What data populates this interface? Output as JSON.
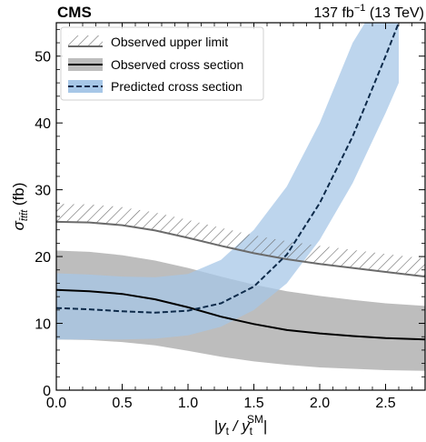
{
  "chart_data": {
    "type": "line",
    "experiment": "CMS",
    "lumi_label": "137 fb",
    "lumi_sup": "−1",
    "lumi_energy": " (13 TeV)",
    "xlabel": {
      "pre": "|y",
      "sub1": "t",
      "mid": " / y",
      "sub2": "t",
      "sup2": "SM",
      "post": "|"
    },
    "ylabel": {
      "main": "σ",
      "sub": "t̄tt̄t",
      "unit": " (fb)"
    },
    "xlim": [
      0,
      2.8
    ],
    "ylim": [
      0,
      55
    ],
    "x_ticks": [
      0.0,
      0.5,
      1.0,
      1.5,
      2.0,
      2.5
    ],
    "x_tick_labels": [
      "0.0",
      "0.5",
      "1.0",
      "1.5",
      "2.0",
      "2.5"
    ],
    "y_ticks": [
      0,
      10,
      20,
      30,
      40,
      50
    ],
    "y_tick_labels": [
      "0",
      "10",
      "20",
      "30",
      "40",
      "50"
    ],
    "legend_position": "top-left",
    "colors": {
      "observed_limit_line": "#6b6b6b",
      "observed_band": "#bdbdbd",
      "observed_line": "#000000",
      "predicted_band": "#a7c7e7",
      "predicted_line": "#0d2a4a"
    },
    "series": [
      {
        "name": "Observed upper limit",
        "style": "hatched",
        "x": [
          0.0,
          0.25,
          0.5,
          0.75,
          1.0,
          1.25,
          1.5,
          1.75,
          2.0,
          2.25,
          2.5,
          2.8
        ],
        "y": [
          25.2,
          25.1,
          24.7,
          23.9,
          22.8,
          21.6,
          20.5,
          19.6,
          18.9,
          18.3,
          17.7,
          17.0
        ]
      },
      {
        "name": "Observed cross section",
        "style": "band",
        "x": [
          0.0,
          0.25,
          0.5,
          0.75,
          1.0,
          1.25,
          1.5,
          1.75,
          2.0,
          2.25,
          2.5,
          2.8
        ],
        "y": [
          15.0,
          14.8,
          14.4,
          13.6,
          12.4,
          11.0,
          9.9,
          9.0,
          8.5,
          8.1,
          7.8,
          7.6
        ],
        "y_low": [
          7.6,
          7.5,
          7.2,
          6.7,
          5.9,
          5.0,
          4.3,
          3.8,
          3.4,
          3.2,
          3.0,
          2.9
        ],
        "y_high": [
          20.9,
          20.7,
          20.2,
          19.4,
          18.3,
          17.0,
          15.8,
          14.8,
          14.1,
          13.5,
          13.0,
          12.6
        ]
      },
      {
        "name": "Predicted cross section",
        "style": "band",
        "x": [
          0.0,
          0.25,
          0.5,
          0.75,
          1.0,
          1.25,
          1.5,
          1.75,
          2.0,
          2.25,
          2.5,
          2.6
        ],
        "y": [
          12.3,
          12.1,
          11.8,
          11.6,
          11.9,
          13.0,
          15.5,
          20.3,
          28.0,
          38.0,
          50.0,
          55.0
        ],
        "y_low": [
          7.6,
          7.6,
          7.6,
          7.7,
          8.2,
          9.5,
          12.0,
          16.0,
          22.5,
          31.0,
          41.5,
          46.0
        ],
        "y_high": [
          17.5,
          17.3,
          17.0,
          16.9,
          17.4,
          19.5,
          24.0,
          30.5,
          40.0,
          52.0,
          60.0,
          62.0
        ]
      }
    ]
  }
}
